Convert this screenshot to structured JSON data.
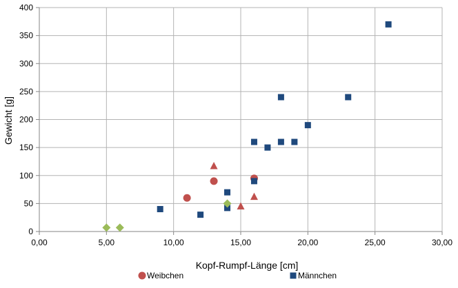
{
  "chart_data": {
    "type": "scatter",
    "xlabel": "Kopf-Rumpf-Länge [cm]",
    "ylabel": "Gewicht  [g]",
    "xlim": [
      0,
      30
    ],
    "ylim": [
      0,
      400
    ],
    "x_ticks": [
      "0,00",
      "5,00",
      "10,00",
      "15,00",
      "20,00",
      "25,00",
      "30,00"
    ],
    "y_ticks": [
      "0",
      "50",
      "100",
      "150",
      "200",
      "250",
      "300",
      "350",
      "400"
    ],
    "grid": true,
    "legend_position": "bottom",
    "series": [
      {
        "name": "Weibchen",
        "marker": "circle",
        "color": "#c0504d",
        "points": [
          [
            11,
            60
          ],
          [
            13,
            90
          ],
          [
            16,
            95
          ]
        ]
      },
      {
        "name": "Männchen",
        "marker": "square",
        "color": "#1f497d",
        "points": [
          [
            9,
            40
          ],
          [
            12,
            30
          ],
          [
            14,
            70
          ],
          [
            14,
            42
          ],
          [
            16,
            160
          ],
          [
            16,
            90
          ],
          [
            17,
            150
          ],
          [
            18,
            240
          ],
          [
            18,
            160
          ],
          [
            19,
            160
          ],
          [
            20,
            190
          ],
          [
            23,
            240
          ],
          [
            26,
            370
          ]
        ]
      },
      {
        "name": "",
        "marker": "triangle",
        "color": "#c0504d",
        "points": [
          [
            13,
            117
          ],
          [
            15,
            45
          ],
          [
            16,
            62
          ]
        ]
      },
      {
        "name": "",
        "marker": "diamond",
        "color": "#9bbb59",
        "points": [
          [
            5,
            7
          ],
          [
            6,
            7
          ],
          [
            14,
            50
          ]
        ]
      }
    ]
  }
}
